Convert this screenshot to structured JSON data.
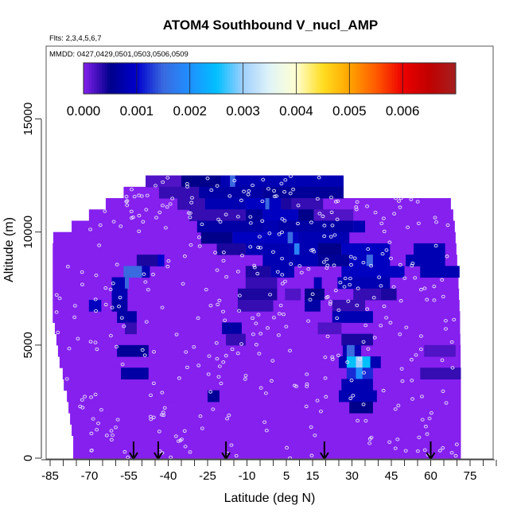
{
  "chart_data": {
    "type": "heatmap",
    "title": "ATOM4 Southbound V_nucl_AMP",
    "subtitle": "Flts: 2,3,4,5,6,7",
    "legend_note": "MMDD: 0427,0429,0501,0503,0506,0509",
    "xlabel": "Latitude (deg N)",
    "ylabel": "Altitude (m)",
    "xlim": [
      -86,
      84
    ],
    "ylim": [
      0,
      18200
    ],
    "x_ticks": [
      "-85",
      "-70",
      "-55",
      "-40",
      "-25",
      "-10",
      "5",
      "15",
      "30",
      "45",
      "60",
      "75"
    ],
    "x_tick_values": [
      -85,
      -70,
      -55,
      -40,
      -25,
      -10,
      5,
      15,
      30,
      45,
      60,
      75
    ],
    "y_ticks": [
      "0",
      "5000",
      "10000",
      "15000"
    ],
    "y_tick_values": [
      0,
      5000,
      10000,
      15000
    ],
    "colorbar": {
      "range": [
        0,
        0.007
      ],
      "tick_labels": [
        "0.000",
        "0.001",
        "0.002",
        "0.003",
        "0.004",
        "0.005",
        "0.006"
      ],
      "tick_values": [
        0,
        0.001,
        0.002,
        0.003,
        0.004,
        0.005,
        0.006
      ],
      "placement": "top"
    },
    "colorscale": [
      [
        0,
        "#8520ee"
      ],
      [
        0.0005,
        "#00008b"
      ],
      [
        0.001,
        "#0000cd"
      ],
      [
        0.0015,
        "#3a6ae0"
      ],
      [
        0.002,
        "#1e90ff"
      ],
      [
        0.0025,
        "#00bfff"
      ],
      [
        0.003,
        "#9fcfff"
      ],
      [
        0.0035,
        "#e0f4f8"
      ],
      [
        0.004,
        "#ffffd0"
      ],
      [
        0.0045,
        "#ffdd20"
      ],
      [
        0.005,
        "#ffa500"
      ],
      [
        0.0055,
        "#ff5a00"
      ],
      [
        0.006,
        "#ee0000"
      ],
      [
        0.0065,
        "#c00000"
      ],
      [
        0.007,
        "#a52020"
      ]
    ],
    "altitude_bin_m": 500,
    "row_lat_extent": [
      [
        -76.2,
        71.5
      ],
      [
        -76.2,
        71.5
      ],
      [
        -76.8,
        71.5
      ],
      [
        -77.4,
        71.5
      ],
      [
        -78,
        71.5
      ],
      [
        -78.6,
        71.5
      ],
      [
        -79.8,
        71.5
      ],
      [
        -80.2,
        71.5
      ],
      [
        -81.4,
        71.4
      ],
      [
        -82,
        71.4
      ],
      [
        -82.6,
        71.3
      ],
      [
        -83.2,
        71.2
      ],
      [
        -84,
        71.2
      ],
      [
        -84,
        71
      ],
      [
        -84,
        70.8
      ],
      [
        -84,
        70.6
      ],
      [
        -84,
        70.4
      ],
      [
        -84,
        70.1
      ],
      [
        -84,
        69.8
      ],
      [
        -83.8,
        69.5
      ],
      [
        -76.8,
        69.2
      ],
      [
        -70.2,
        68.6
      ],
      [
        -63.8,
        67.7
      ],
      [
        -57,
        26.8
      ],
      [
        -48.6,
        26.8
      ]
    ],
    "cells": [
      [
        -48.6,
        -35,
        24,
        0.0002
      ],
      [
        -35,
        -20,
        24,
        0.0005
      ],
      [
        -20,
        26.8,
        24,
        0.0008
      ],
      [
        -16.5,
        -14.5,
        24,
        0.0015
      ],
      [
        -43.5,
        -28.3,
        23,
        0.0003
      ],
      [
        -28.3,
        -4,
        23,
        0.0007
      ],
      [
        -4,
        26.8,
        23,
        0.0006
      ],
      [
        -36.5,
        -26,
        22,
        0.0003
      ],
      [
        -26,
        -10.5,
        22,
        0.0008
      ],
      [
        -10.5,
        3,
        22,
        0.0009
      ],
      [
        -3,
        -1.5,
        22,
        0.0015
      ],
      [
        3,
        7,
        22,
        0.0004
      ],
      [
        7,
        19,
        22,
        0.0003
      ],
      [
        -32,
        -10.5,
        21,
        0.0003
      ],
      [
        -10.5,
        -4,
        21,
        0.0006
      ],
      [
        -4,
        9.5,
        21,
        0.0009
      ],
      [
        9.5,
        15.5,
        21,
        0.0005
      ],
      [
        15.5,
        30.5,
        21,
        0.0002
      ],
      [
        -29,
        30.5,
        20,
        0.0007
      ],
      [
        -4,
        2,
        20,
        0.0008
      ],
      [
        30.5,
        35,
        20,
        0.0008
      ],
      [
        -27.5,
        -15.5,
        19,
        0.0005
      ],
      [
        -15.5,
        -4,
        19,
        0.0009
      ],
      [
        -4,
        9.5,
        19,
        0.0009
      ],
      [
        5.5,
        7.5,
        19,
        0.0015
      ],
      [
        9.5,
        29,
        19,
        0.0008
      ],
      [
        -21.5,
        -10.5,
        18,
        0.0004
      ],
      [
        -10.5,
        -4,
        18,
        0.0008
      ],
      [
        -4,
        17,
        18,
        0.0008
      ],
      [
        8,
        10,
        18,
        0.0018
      ],
      [
        17,
        26,
        18,
        0.0005
      ],
      [
        26,
        44.5,
        18,
        0.0009
      ],
      [
        53.5,
        65.5,
        18,
        0.0008
      ],
      [
        -52,
        -42.5,
        17,
        0.0004
      ],
      [
        -44,
        -41.5,
        17,
        0.001
      ],
      [
        -4,
        17,
        17,
        0.0008
      ],
      [
        17,
        29,
        17,
        0.0006
      ],
      [
        29,
        44.5,
        17,
        0.0009
      ],
      [
        35.5,
        38,
        17,
        0.0015
      ],
      [
        50.5,
        65.5,
        17,
        0.0008
      ],
      [
        -57,
        -50,
        16,
        0.0015
      ],
      [
        -50,
        -47,
        16,
        0.0008
      ],
      [
        -10.5,
        -1,
        16,
        0.0004
      ],
      [
        -1,
        8,
        16,
        0.0008
      ],
      [
        26,
        50,
        16,
        0.0009
      ],
      [
        56,
        71,
        16,
        0.0008
      ],
      [
        -61.5,
        -55.5,
        15,
        0.0008
      ],
      [
        -56.5,
        -55,
        15,
        0.0015
      ],
      [
        -10.5,
        1.5,
        15,
        0.0003
      ],
      [
        15.5,
        18.5,
        15,
        0.0008
      ],
      [
        24.5,
        44.5,
        15,
        0.0008
      ],
      [
        -61.5,
        -55.5,
        14,
        0.0008
      ],
      [
        -13.5,
        1.5,
        14,
        0.0004
      ],
      [
        4.5,
        10.5,
        14,
        0.0002
      ],
      [
        12,
        19.5,
        14,
        0.0005
      ],
      [
        30.5,
        41,
        14,
        0.0003
      ],
      [
        41,
        47,
        14,
        0.0004
      ],
      [
        -70.2,
        -65.5,
        13,
        0.0009
      ],
      [
        -61.5,
        -55.5,
        13,
        0.0007
      ],
      [
        -13.5,
        0,
        13,
        0.0003
      ],
      [
        12,
        18,
        13,
        0.0007
      ],
      [
        22.5,
        35,
        13,
        0.0003
      ],
      [
        -59.5,
        -52,
        12,
        0.0007
      ],
      [
        22.5,
        38,
        12,
        0.0008
      ],
      [
        -56.5,
        -52,
        11,
        0.0003
      ],
      [
        -19.5,
        -12,
        11,
        0.0007
      ],
      [
        17,
        26,
        11,
        0.0002
      ],
      [
        -18,
        -10.5,
        10,
        0.0003
      ],
      [
        26,
        38,
        10,
        0.0004
      ],
      [
        -59.5,
        -47.5,
        9,
        0.0006
      ],
      [
        26.5,
        33.5,
        9,
        0.0008
      ],
      [
        28,
        31,
        9,
        0.0015
      ],
      [
        57.5,
        69.5,
        9,
        0.0002
      ],
      [
        25,
        41,
        8,
        0.0008
      ],
      [
        28,
        37,
        8,
        0.0025
      ],
      [
        31.5,
        34,
        8,
        0.003
      ],
      [
        -58,
        -47.5,
        7,
        0.0007
      ],
      [
        28,
        38,
        7,
        0.0012
      ],
      [
        31.5,
        34,
        7,
        0.002
      ],
      [
        56,
        71.5,
        7,
        0.0003
      ],
      [
        26,
        38,
        6,
        0.0008
      ],
      [
        -25,
        -20.5,
        5,
        0.0006
      ],
      [
        25,
        39.5,
        5,
        0.0008
      ],
      [
        29,
        38,
        4,
        0.0005
      ]
    ],
    "flight_markers_lat": [
      -53.2,
      -43.8,
      -18,
      19.5,
      60
    ],
    "sample_points": "open white circles (flight samples)"
  }
}
